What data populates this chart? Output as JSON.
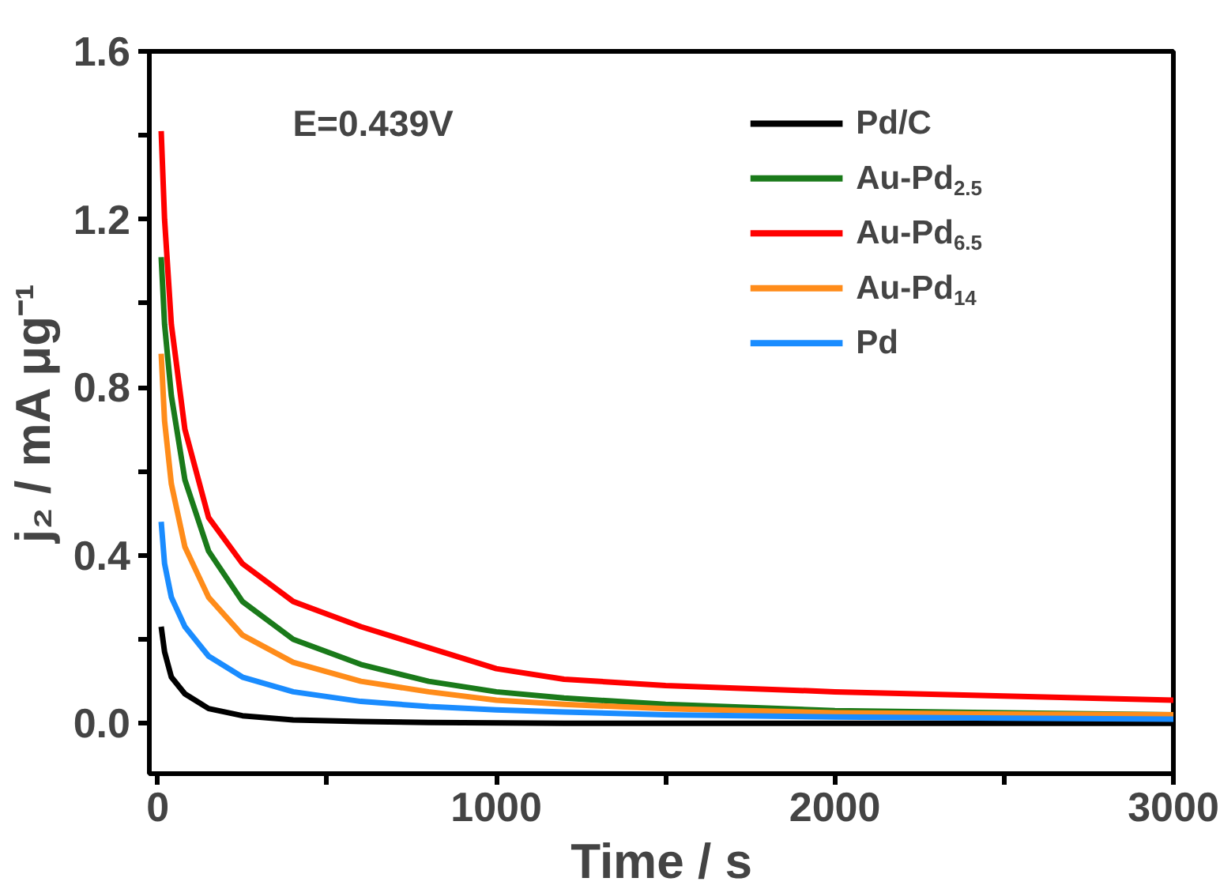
{
  "chart_data": {
    "type": "line",
    "xlabel": "Time / s",
    "ylabel": "j₂ / mA μg⁻¹",
    "annotations": [
      "E=0.439V"
    ],
    "x": [
      10,
      20,
      40,
      80,
      150,
      250,
      400,
      600,
      800,
      1000,
      1200,
      1500,
      2000,
      2500,
      3000
    ],
    "series": [
      {
        "name": "Pd/C",
        "color": "#000000",
        "values": [
          0.23,
          0.17,
          0.11,
          0.07,
          0.035,
          0.018,
          0.008,
          0.004,
          0.002,
          0.001,
          0,
          0,
          0,
          0,
          0
        ]
      },
      {
        "name": "Au-Pd$_{2.5}$",
        "color": "#1a7a1a",
        "values": [
          1.11,
          0.95,
          0.78,
          0.58,
          0.41,
          0.29,
          0.2,
          0.14,
          0.1,
          0.075,
          0.06,
          0.045,
          0.03,
          0.025,
          0.02
        ]
      },
      {
        "name": "Au-Pd$_{6.5}$",
        "color": "#ff0000",
        "values": [
          1.41,
          1.2,
          0.95,
          0.7,
          0.49,
          0.38,
          0.29,
          0.23,
          0.18,
          0.13,
          0.105,
          0.09,
          0.075,
          0.065,
          0.055
        ]
      },
      {
        "name": "Au-Pd$_{14}$",
        "color": "#ff8c1a",
        "values": [
          0.88,
          0.72,
          0.57,
          0.42,
          0.3,
          0.21,
          0.145,
          0.1,
          0.075,
          0.055,
          0.045,
          0.035,
          0.025,
          0.022,
          0.02
        ]
      },
      {
        "name": "Pd",
        "color": "#1a8cff",
        "values": [
          0.48,
          0.38,
          0.3,
          0.23,
          0.16,
          0.11,
          0.075,
          0.052,
          0.04,
          0.032,
          0.027,
          0.02,
          0.015,
          0.012,
          0.01
        ]
      }
    ],
    "xlim": [
      -25,
      3000
    ],
    "ylim": [
      -0.12,
      1.6
    ],
    "xticks": [
      0,
      {
        "value": 500,
        "label": null
      },
      1000,
      {
        "value": 1500,
        "label": null
      },
      2000,
      {
        "value": 2500,
        "label": null
      },
      3000
    ],
    "yticks": [
      "0.0",
      {
        "value": 0.2,
        "label": null
      },
      {
        "value": 0.4,
        "label": "0.4"
      },
      {
        "value": 0.6,
        "label": null
      },
      {
        "value": 0.8,
        "label": "0.8"
      },
      {
        "value": 1.0,
        "label": null
      },
      {
        "value": 1.2,
        "label": "1.2"
      },
      {
        "value": 1.4,
        "label": null
      },
      {
        "value": 1.6,
        "label": "1.6"
      }
    ],
    "legend": "top right",
    "grid": false,
    "marker": "none",
    "line_style": "solid"
  }
}
